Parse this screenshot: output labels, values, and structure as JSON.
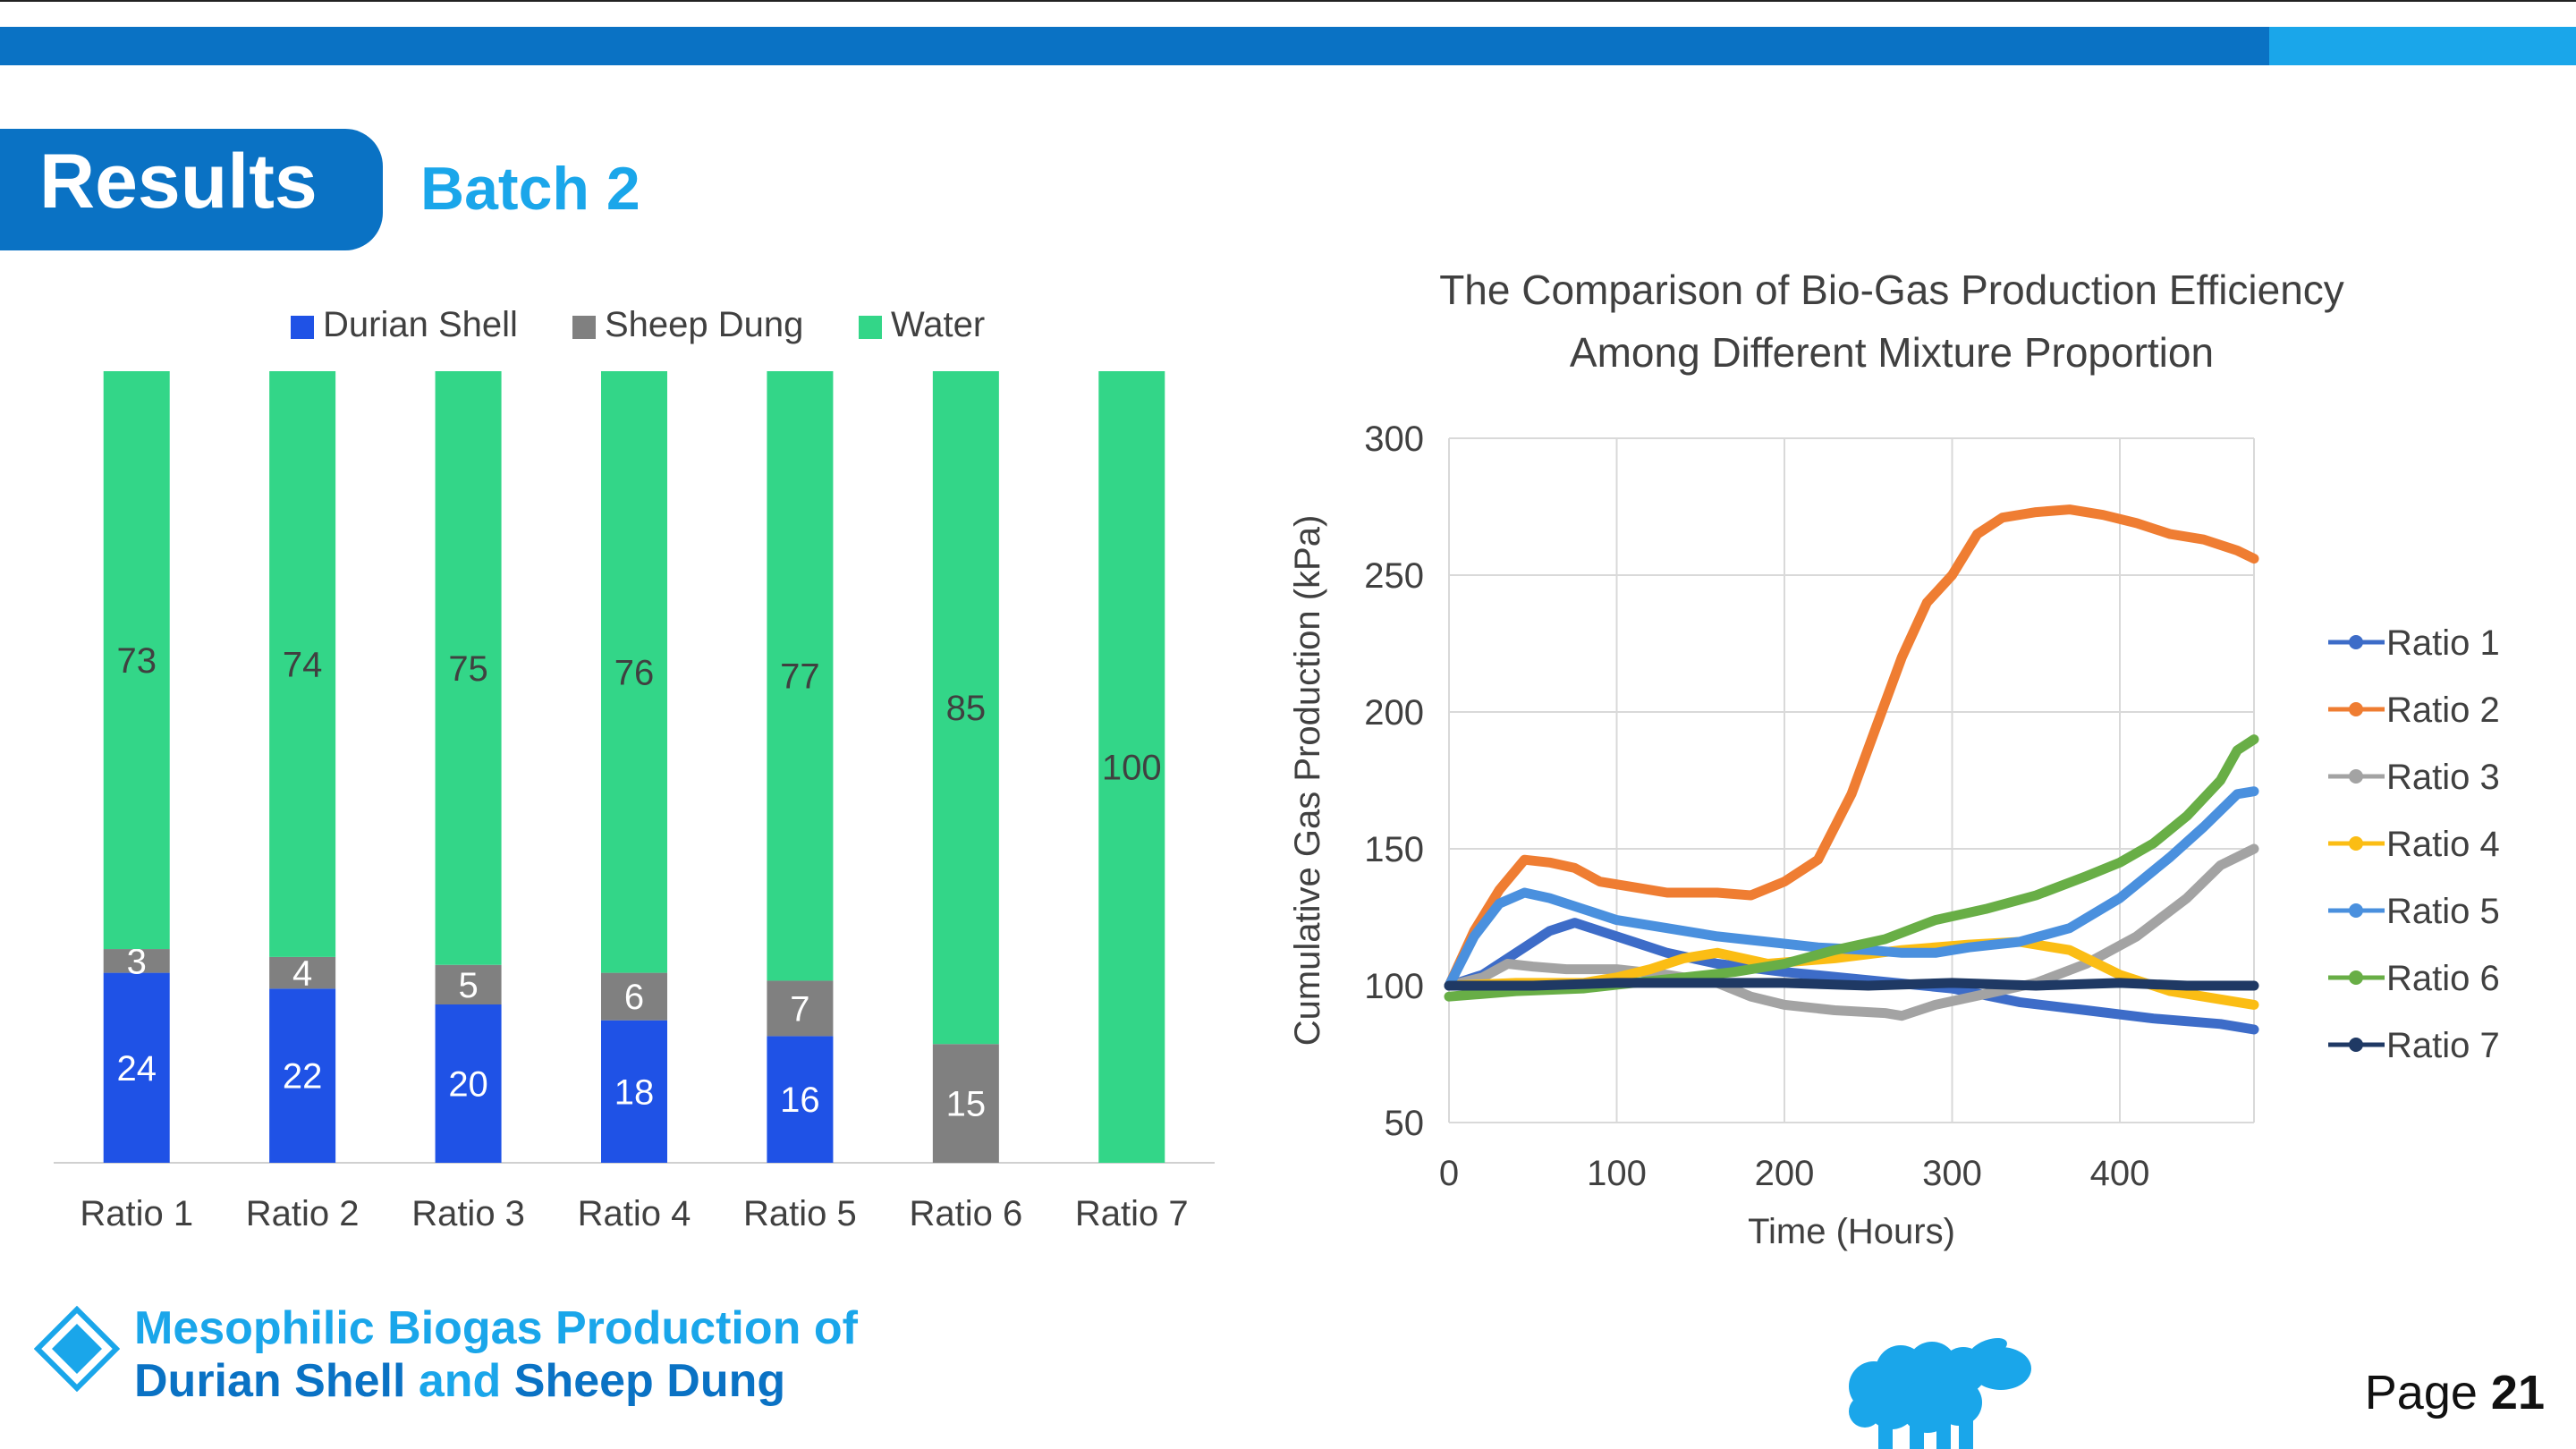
{
  "header": {
    "title": "Results",
    "subtitle": "Batch 2"
  },
  "colors": {
    "brand": "#0a72c4",
    "accent": "#1aa6ea",
    "durian": "#1f52e6",
    "sheep": "#808080",
    "water": "#33d688",
    "ratio1": "#3d6cc8",
    "ratio2": "#ef7d32",
    "ratio3": "#a3a3a3",
    "ratio4": "#fbbd14",
    "ratio5": "#4a90de",
    "ratio6": "#68ae46",
    "ratio7": "#1f3964"
  },
  "chart_data": [
    {
      "type": "bar",
      "stacked": true,
      "categories": [
        "Ratio 1",
        "Ratio 2",
        "Ratio 3",
        "Ratio 4",
        "Ratio 5",
        "Ratio 6",
        "Ratio 7"
      ],
      "series": [
        {
          "name": "Durian Shell",
          "values": [
            24,
            22,
            20,
            18,
            16,
            0,
            0
          ]
        },
        {
          "name": "Sheep Dung",
          "values": [
            3,
            4,
            5,
            6,
            7,
            15,
            0
          ]
        },
        {
          "name": "Water",
          "values": [
            73,
            74,
            75,
            76,
            77,
            85,
            100
          ]
        }
      ],
      "legend_position": "top",
      "grid": false
    },
    {
      "type": "line",
      "title_lines": [
        "The Comparison of Bio-Gas Production Efficiency",
        "Among Different Mixture Proportion"
      ],
      "xlabel": "Time (Hours)",
      "ylabel": "Cumulative Gas Production (kPa)",
      "xlim": [
        0,
        480
      ],
      "ylim": [
        50,
        300
      ],
      "xticks": [
        0,
        100,
        200,
        300,
        400
      ],
      "yticks": [
        50,
        100,
        150,
        200,
        250,
        300
      ],
      "grid": true,
      "legend_position": "right",
      "series": [
        {
          "name": "Ratio 1",
          "points": [
            [
              0,
              100
            ],
            [
              20,
              104
            ],
            [
              40,
              112
            ],
            [
              60,
              120
            ],
            [
              75,
              123
            ],
            [
              90,
              120
            ],
            [
              110,
              116
            ],
            [
              130,
              112
            ],
            [
              160,
              108
            ],
            [
              200,
              105
            ],
            [
              250,
              102
            ],
            [
              300,
              99
            ],
            [
              340,
              94
            ],
            [
              380,
              91
            ],
            [
              420,
              88
            ],
            [
              460,
              86
            ],
            [
              480,
              84
            ]
          ]
        },
        {
          "name": "Ratio 2",
          "points": [
            [
              0,
              100
            ],
            [
              15,
              120
            ],
            [
              30,
              135
            ],
            [
              45,
              146
            ],
            [
              60,
              145
            ],
            [
              75,
              143
            ],
            [
              90,
              138
            ],
            [
              110,
              136
            ],
            [
              130,
              134
            ],
            [
              160,
              134
            ],
            [
              180,
              133
            ],
            [
              200,
              138
            ],
            [
              220,
              146
            ],
            [
              240,
              170
            ],
            [
              255,
              195
            ],
            [
              270,
              220
            ],
            [
              285,
              240
            ],
            [
              300,
              250
            ],
            [
              315,
              265
            ],
            [
              330,
              271
            ],
            [
              350,
              273
            ],
            [
              370,
              274
            ],
            [
              390,
              272
            ],
            [
              410,
              269
            ],
            [
              430,
              265
            ],
            [
              450,
              263
            ],
            [
              470,
              259
            ],
            [
              480,
              256
            ]
          ]
        },
        {
          "name": "Ratio 3",
          "points": [
            [
              0,
              100
            ],
            [
              20,
              103
            ],
            [
              35,
              108
            ],
            [
              50,
              107
            ],
            [
              70,
              106
            ],
            [
              100,
              106
            ],
            [
              130,
              104
            ],
            [
              160,
              101
            ],
            [
              180,
              96
            ],
            [
              200,
              93
            ],
            [
              230,
              91
            ],
            [
              260,
              90
            ],
            [
              270,
              89
            ],
            [
              290,
              93
            ],
            [
              320,
              97
            ],
            [
              350,
              101
            ],
            [
              380,
              108
            ],
            [
              410,
              118
            ],
            [
              440,
              132
            ],
            [
              460,
              144
            ],
            [
              480,
              150
            ]
          ]
        },
        {
          "name": "Ratio 4",
          "points": [
            [
              0,
              100
            ],
            [
              40,
              101
            ],
            [
              80,
              101
            ],
            [
              100,
              103
            ],
            [
              120,
              106
            ],
            [
              140,
              110
            ],
            [
              160,
              112
            ],
            [
              190,
              108
            ],
            [
              230,
              110
            ],
            [
              270,
              113
            ],
            [
              310,
              115
            ],
            [
              340,
              116
            ],
            [
              370,
              113
            ],
            [
              400,
              104
            ],
            [
              430,
              98
            ],
            [
              460,
              95
            ],
            [
              480,
              93
            ]
          ]
        },
        {
          "name": "Ratio 5",
          "points": [
            [
              0,
              100
            ],
            [
              15,
              118
            ],
            [
              30,
              130
            ],
            [
              45,
              134
            ],
            [
              60,
              132
            ],
            [
              80,
              128
            ],
            [
              100,
              124
            ],
            [
              130,
              121
            ],
            [
              160,
              118
            ],
            [
              190,
              116
            ],
            [
              220,
              114
            ],
            [
              250,
              113
            ],
            [
              270,
              112
            ],
            [
              290,
              112
            ],
            [
              310,
              114
            ],
            [
              340,
              116
            ],
            [
              370,
              121
            ],
            [
              400,
              132
            ],
            [
              430,
              147
            ],
            [
              450,
              158
            ],
            [
              470,
              170
            ],
            [
              480,
              171
            ]
          ]
        },
        {
          "name": "Ratio 6",
          "points": [
            [
              0,
              96
            ],
            [
              40,
              98
            ],
            [
              80,
              99
            ],
            [
              110,
              101
            ],
            [
              140,
              103
            ],
            [
              170,
              105
            ],
            [
              200,
              108
            ],
            [
              230,
              113
            ],
            [
              260,
              117
            ],
            [
              290,
              124
            ],
            [
              320,
              128
            ],
            [
              350,
              133
            ],
            [
              380,
              140
            ],
            [
              400,
              145
            ],
            [
              420,
              152
            ],
            [
              440,
              162
            ],
            [
              460,
              175
            ],
            [
              470,
              186
            ],
            [
              480,
              190
            ]
          ]
        },
        {
          "name": "Ratio 7",
          "points": [
            [
              0,
              100
            ],
            [
              50,
              100
            ],
            [
              100,
              101
            ],
            [
              150,
              101
            ],
            [
              200,
              101
            ],
            [
              250,
              100
            ],
            [
              300,
              101
            ],
            [
              350,
              100
            ],
            [
              400,
              101
            ],
            [
              440,
              100
            ],
            [
              480,
              100
            ]
          ]
        }
      ]
    }
  ],
  "footer": {
    "title_line1": "Mesophilic Biogas Production of",
    "line2_part1": "Durian Shell",
    "line2_conj": "and",
    "line2_part2": "Sheep Dung",
    "page_label": "Page",
    "page_number": "21"
  }
}
